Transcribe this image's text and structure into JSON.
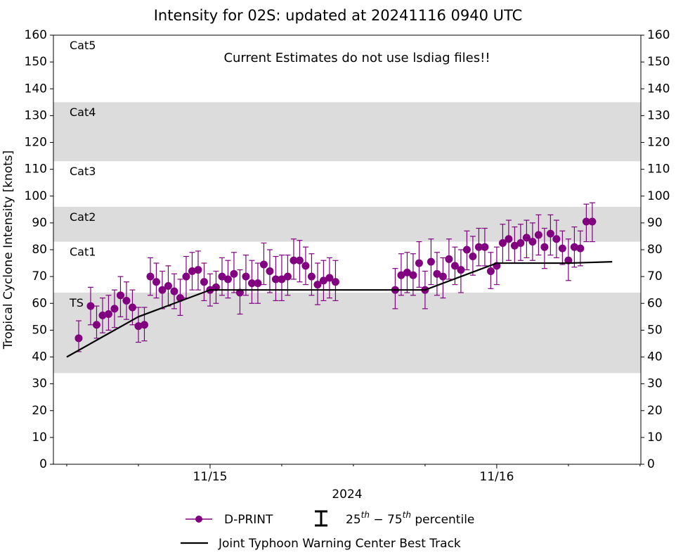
{
  "chart_data": {
    "type": "line",
    "title": "Intensity for 02S: updated at 20241116 0940 UTC",
    "annotation": "Current Estimates do not use lsdiag files!!",
    "xlabel": "2024",
    "ylabel": "Tropical Cyclone Intensity [knots]",
    "xlim": [
      "2024-11-14T10:53",
      "2024-11-16T12:04"
    ],
    "xticks": [
      {
        "value": "2024-11-15T00:00",
        "label": "11/15"
      },
      {
        "value": "2024-11-16T00:00",
        "label": "11/16"
      }
    ],
    "xminorticks": [
      "2024-11-14T12:00",
      "2024-11-14T18:00",
      "2024-11-15T06:00",
      "2024-11-15T12:00",
      "2024-11-15T18:00",
      "2024-11-16T06:00",
      "2024-11-16T12:00"
    ],
    "ylim": [
      0,
      160
    ],
    "yticks": [
      0,
      10,
      20,
      30,
      40,
      50,
      60,
      70,
      80,
      90,
      100,
      110,
      120,
      130,
      140,
      150,
      160
    ],
    "y2ticks": [
      0,
      10,
      20,
      30,
      40,
      50,
      60,
      70,
      80,
      90,
      100,
      110,
      120,
      130,
      140,
      150,
      160
    ],
    "bands": [
      {
        "label": "TS",
        "from": 34,
        "to": 64,
        "shaded": true
      },
      {
        "label": "Cat1",
        "from": 64,
        "to": 83,
        "shaded": false
      },
      {
        "label": "Cat2",
        "from": 83,
        "to": 96,
        "shaded": true
      },
      {
        "label": "Cat3",
        "from": 96,
        "to": 113,
        "shaded": false
      },
      {
        "label": "Cat4",
        "from": 113,
        "to": 135,
        "shaded": true
      },
      {
        "label": "Cat5",
        "from": 135,
        "to": 160,
        "shaded": false
      }
    ],
    "errorbar_legend": "25th − 75th percentile",
    "series": [
      {
        "name": "D-PRINT",
        "color": "#800080",
        "marker": "o",
        "x": [
          "2024-11-14T13:00",
          "2024-11-14T14:00",
          "2024-11-14T14:30",
          "2024-11-14T15:00",
          "2024-11-14T15:30",
          "2024-11-14T16:00",
          "2024-11-14T16:30",
          "2024-11-14T17:00",
          "2024-11-14T17:30",
          "2024-11-14T18:00",
          "2024-11-14T18:30",
          "2024-11-14T19:00",
          "2024-11-14T19:30",
          "2024-11-14T20:00",
          "2024-11-14T20:30",
          "2024-11-14T21:00",
          "2024-11-14T21:30",
          "2024-11-14T22:00",
          "2024-11-14T22:30",
          "2024-11-14T23:00",
          "2024-11-14T23:30",
          "2024-11-15T00:00",
          "2024-11-15T00:30",
          "2024-11-15T01:00",
          "2024-11-15T01:30",
          "2024-11-15T02:00",
          "2024-11-15T02:30",
          "2024-11-15T03:00",
          "2024-11-15T03:30",
          "2024-11-15T04:00",
          "2024-11-15T04:30",
          "2024-11-15T05:00",
          "2024-11-15T05:30",
          "2024-11-15T06:00",
          "2024-11-15T06:30",
          "2024-11-15T07:00",
          "2024-11-15T07:30",
          "2024-11-15T08:00",
          "2024-11-15T08:30",
          "2024-11-15T09:00",
          "2024-11-15T09:30",
          "2024-11-15T10:00",
          "2024-11-15T10:30",
          "2024-11-15T15:30",
          "2024-11-15T16:00",
          "2024-11-15T16:30",
          "2024-11-15T17:00",
          "2024-11-15T17:30",
          "2024-11-15T18:00",
          "2024-11-15T18:30",
          "2024-11-15T19:00",
          "2024-11-15T19:30",
          "2024-11-15T20:00",
          "2024-11-15T20:30",
          "2024-11-15T21:00",
          "2024-11-15T21:30",
          "2024-11-15T22:00",
          "2024-11-15T22:30",
          "2024-11-15T23:00",
          "2024-11-15T23:30",
          "2024-11-16T00:00",
          "2024-11-16T00:30",
          "2024-11-16T01:00",
          "2024-11-16T01:30",
          "2024-11-16T02:00",
          "2024-11-16T02:30",
          "2024-11-16T03:00",
          "2024-11-16T03:30",
          "2024-11-16T04:00",
          "2024-11-16T04:30",
          "2024-11-16T05:00",
          "2024-11-16T05:30",
          "2024-11-16T06:00",
          "2024-11-16T06:30",
          "2024-11-16T07:00",
          "2024-11-16T07:30",
          "2024-11-16T08:00"
        ],
        "values": [
          47,
          59,
          52,
          55.5,
          56,
          58,
          63,
          61,
          58.5,
          51.5,
          52,
          70,
          68,
          65,
          66.5,
          64.5,
          62,
          70,
          72,
          72.5,
          68,
          65,
          66,
          70,
          69,
          71,
          64,
          70,
          67.5,
          67.5,
          74.5,
          72,
          69,
          69,
          70,
          76,
          76,
          74,
          70,
          67,
          68.5,
          69.5,
          68,
          65,
          70.5,
          71.5,
          70.5,
          75,
          65,
          75.5,
          71,
          70,
          76.5,
          74,
          72.5,
          80,
          77.5,
          81,
          81,
          72,
          74,
          82.5,
          84,
          81.5,
          82.5,
          84.5,
          83,
          85.5,
          81,
          86,
          84,
          80.5,
          76,
          81,
          80.5,
          90.5,
          90.5
        ],
        "low": [
          42,
          52,
          47,
          49,
          50,
          51,
          55,
          54,
          52,
          45.5,
          46,
          63,
          62,
          58,
          59,
          58,
          55.5,
          62,
          65,
          65,
          61,
          59,
          60,
          63,
          62,
          64,
          56,
          63,
          60,
          60,
          67,
          64,
          61,
          61,
          63,
          69,
          68,
          67,
          63,
          59.5,
          61,
          62,
          61,
          58,
          63,
          64,
          63,
          66,
          58,
          67,
          63,
          62,
          69,
          67,
          64,
          72.5,
          70.5,
          74,
          74,
          65.5,
          67,
          75,
          76,
          75,
          76,
          77,
          76,
          78,
          73,
          78,
          77,
          74.5,
          68.5,
          73.5,
          74,
          83,
          83
        ],
        "high": [
          53.5,
          66,
          59,
          62,
          63,
          65,
          70,
          68,
          65,
          58.5,
          58.5,
          77,
          75,
          72,
          74,
          71,
          69,
          77.5,
          79,
          79.5,
          75,
          71,
          72,
          77,
          76,
          79,
          72.5,
          78,
          76,
          75,
          82.5,
          80,
          77.5,
          78,
          78,
          84,
          83.5,
          81,
          78.5,
          75,
          76,
          77,
          76,
          73,
          78.5,
          79,
          78.5,
          83,
          72,
          84,
          79,
          77,
          84,
          81,
          80,
          87,
          85,
          88,
          88,
          79,
          81,
          89.5,
          91,
          88.5,
          89.5,
          91,
          90,
          93,
          88,
          93,
          91,
          87,
          84,
          88.5,
          87,
          97,
          97.5
        ]
      },
      {
        "name": "Joint Typhoon Warning Center Best Track",
        "color": "#000000",
        "x": [
          "2024-11-14T12:00",
          "2024-11-14T18:00",
          "2024-11-15T00:00",
          "2024-11-15T06:00",
          "2024-11-15T12:00",
          "2024-11-15T18:00",
          "2024-11-16T00:00",
          "2024-11-16T06:00",
          "2024-11-16T09:40"
        ],
        "values": [
          40,
          55,
          65,
          65,
          65,
          65,
          75,
          75,
          75.5
        ]
      }
    ]
  }
}
